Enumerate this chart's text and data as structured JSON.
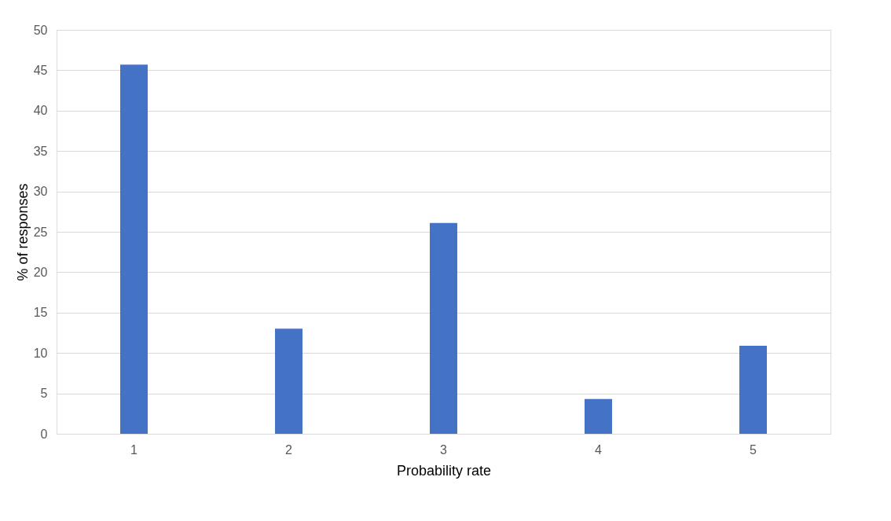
{
  "chart_data": {
    "type": "bar",
    "xlabel": "Probability rate",
    "ylabel": "% of responses",
    "categories": [
      "1",
      "2",
      "3",
      "4",
      "5"
    ],
    "values": [
      45.7,
      13.0,
      26.1,
      4.3,
      10.9
    ],
    "color": "#4472c4",
    "ylim": [
      0,
      50
    ],
    "yticks": [
      0,
      5,
      10,
      15,
      20,
      25,
      30,
      35,
      40,
      45,
      50
    ],
    "grid": "y"
  }
}
